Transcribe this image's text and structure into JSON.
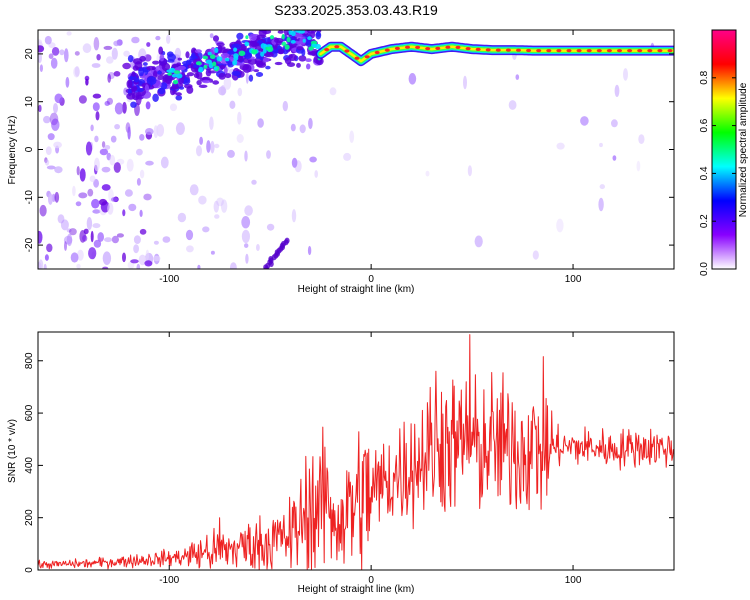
{
  "figure": {
    "title": "S233.2025.353.03.43.R19"
  },
  "chart_data": [
    {
      "type": "heatmap",
      "title": "S233.2025.353.03.43.R19",
      "xlabel": "Height of straight line (km)",
      "ylabel": "Frequency (Hz)",
      "xlim": [
        -165,
        150
      ],
      "ylim": [
        -25,
        25
      ],
      "xticks": [
        -100,
        0,
        100
      ],
      "yticks": [
        -20,
        -10,
        0,
        10,
        20
      ],
      "colorbar": {
        "label": "Normalized spectral amplitude",
        "range": [
          0,
          1
        ],
        "ticks": [
          0.0,
          0.2,
          0.4,
          0.6,
          0.8
        ],
        "colormap": [
          "#ffffff",
          "#8800ff",
          "#0000ff",
          "#00ffff",
          "#00ff00",
          "#ffff00",
          "#ff0000",
          "#ff0088"
        ]
      },
      "ridge": {
        "x": [
          -115,
          -100,
          -85,
          -70,
          -55,
          -40,
          -30,
          -25,
          -20,
          -15,
          -10,
          -5,
          0,
          10,
          20,
          30,
          40,
          50,
          60,
          70,
          80,
          90,
          100,
          110,
          120,
          130,
          140,
          150
        ],
        "y": [
          14,
          15.5,
          17.5,
          19.5,
          21,
          22.5,
          22.5,
          20,
          21.5,
          21.5,
          20,
          18.5,
          20,
          21,
          21.5,
          21,
          21.5,
          21,
          20.8,
          20.8,
          20.7,
          20.7,
          20.7,
          20.7,
          20.7,
          20.7,
          20.7,
          20.7
        ]
      }
    },
    {
      "type": "line",
      "title": "",
      "xlabel": "Height of straight line (km)",
      "ylabel": "SNR (10 * v/v)",
      "xlim": [
        -165,
        150
      ],
      "ylim": [
        0,
        910
      ],
      "xticks": [
        -100,
        0,
        100
      ],
      "yticks": [
        0,
        200,
        400,
        600,
        800
      ],
      "color": "#ee2222",
      "trend": {
        "x": [
          -165,
          -140,
          -120,
          -100,
          -90,
          -80,
          -70,
          -60,
          -50,
          -40,
          -35,
          -30,
          -25,
          -20,
          -15,
          -10,
          -5,
          0,
          10,
          20,
          30,
          40,
          50,
          60,
          70,
          80,
          90,
          100,
          110,
          120,
          130,
          140,
          150
        ],
        "y": [
          20,
          25,
          35,
          45,
          55,
          70,
          80,
          95,
          105,
          130,
          180,
          230,
          250,
          210,
          200,
          230,
          270,
          300,
          350,
          400,
          450,
          480,
          460,
          480,
          460,
          470,
          470,
          470,
          470,
          460,
          470,
          470,
          460
        ]
      },
      "spikes": [
        {
          "x": 49,
          "y": 900
        },
        {
          "x": 32,
          "y": 760
        },
        {
          "x": 47,
          "y": 720
        },
        {
          "x": 35,
          "y": 680
        },
        {
          "x": 28,
          "y": 640
        },
        {
          "x": -23,
          "y": 470
        },
        {
          "x": -22,
          "y": 390
        },
        {
          "x": -32,
          "y": 300
        },
        {
          "x": -75,
          "y": 200
        },
        {
          "x": 70,
          "y": 640
        }
      ]
    }
  ]
}
